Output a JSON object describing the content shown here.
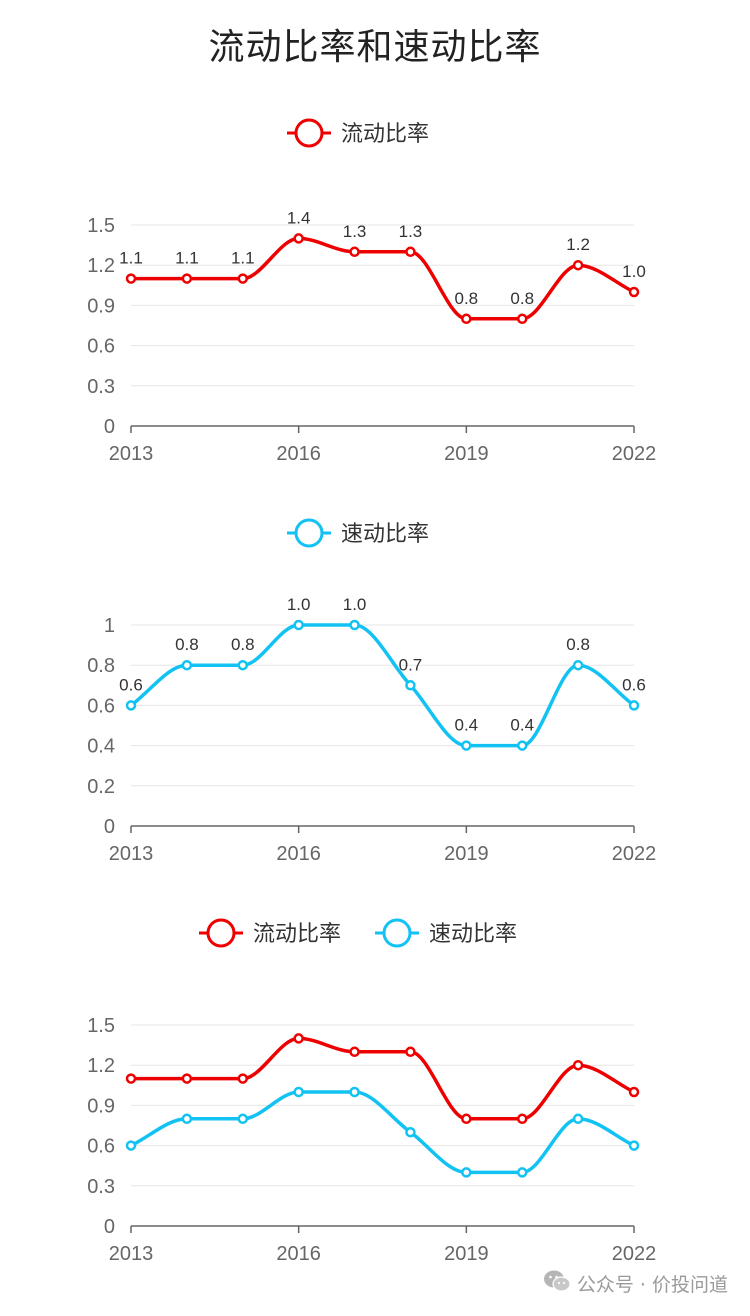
{
  "title": "流动比率和速动比率",
  "colors": {
    "current": "#ee0000",
    "quick": "#12c2f2",
    "grid": "#e6e6e6",
    "axis": "#666666"
  },
  "watermark": {
    "icon": "wechat-icon",
    "text": "公众号 · 价投问道"
  },
  "chart_data": [
    {
      "type": "line",
      "x": [
        2013,
        2014,
        2015,
        2016,
        2017,
        2018,
        2019,
        2020,
        2021,
        2022
      ],
      "x_ticks": [
        "2013",
        "2016",
        "2019",
        "2022"
      ],
      "y_ticks": [
        "0",
        "0.3",
        "0.6",
        "0.9",
        "1.2",
        "1.5"
      ],
      "ylim": [
        0,
        1.5
      ],
      "grid": true,
      "legend_position": "top-center",
      "show_data_labels": true,
      "series": [
        {
          "name": "流动比率",
          "color": "#ee0000",
          "values": [
            1.1,
            1.1,
            1.1,
            1.4,
            1.3,
            1.3,
            0.8,
            0.8,
            1.2,
            1.0
          ],
          "labels": [
            "1.1",
            "1.1",
            "1.1",
            "1.4",
            "1.3",
            "1.3",
            "0.8",
            "0.8",
            "1.2",
            "1.0"
          ]
        }
      ]
    },
    {
      "type": "line",
      "x": [
        2013,
        2014,
        2015,
        2016,
        2017,
        2018,
        2019,
        2020,
        2021,
        2022
      ],
      "x_ticks": [
        "2013",
        "2016",
        "2019",
        "2022"
      ],
      "y_ticks": [
        "0",
        "0.2",
        "0.4",
        "0.6",
        "0.8",
        "1"
      ],
      "ylim": [
        0,
        1
      ],
      "grid": true,
      "legend_position": "top-center",
      "show_data_labels": true,
      "series": [
        {
          "name": "速动比率",
          "color": "#12c2f2",
          "values": [
            0.6,
            0.8,
            0.8,
            1.0,
            1.0,
            0.7,
            0.4,
            0.4,
            0.8,
            0.6
          ],
          "labels": [
            "0.6",
            "0.8",
            "0.8",
            "1.0",
            "1.0",
            "0.7",
            "0.4",
            "0.4",
            "0.8",
            "0.6"
          ]
        }
      ]
    },
    {
      "type": "line",
      "x": [
        2013,
        2014,
        2015,
        2016,
        2017,
        2018,
        2019,
        2020,
        2021,
        2022
      ],
      "x_ticks": [
        "2013",
        "2016",
        "2019",
        "2022"
      ],
      "y_ticks": [
        "0",
        "0.3",
        "0.6",
        "0.9",
        "1.2",
        "1.5"
      ],
      "ylim": [
        0,
        1.5
      ],
      "grid": true,
      "legend_position": "top-center",
      "show_data_labels": false,
      "series": [
        {
          "name": "流动比率",
          "color": "#ee0000",
          "values": [
            1.1,
            1.1,
            1.1,
            1.4,
            1.3,
            1.3,
            0.8,
            0.8,
            1.2,
            1.0
          ]
        },
        {
          "name": "速动比率",
          "color": "#12c2f2",
          "values": [
            0.6,
            0.8,
            0.8,
            1.0,
            1.0,
            0.7,
            0.4,
            0.4,
            0.8,
            0.6
          ]
        }
      ]
    }
  ]
}
